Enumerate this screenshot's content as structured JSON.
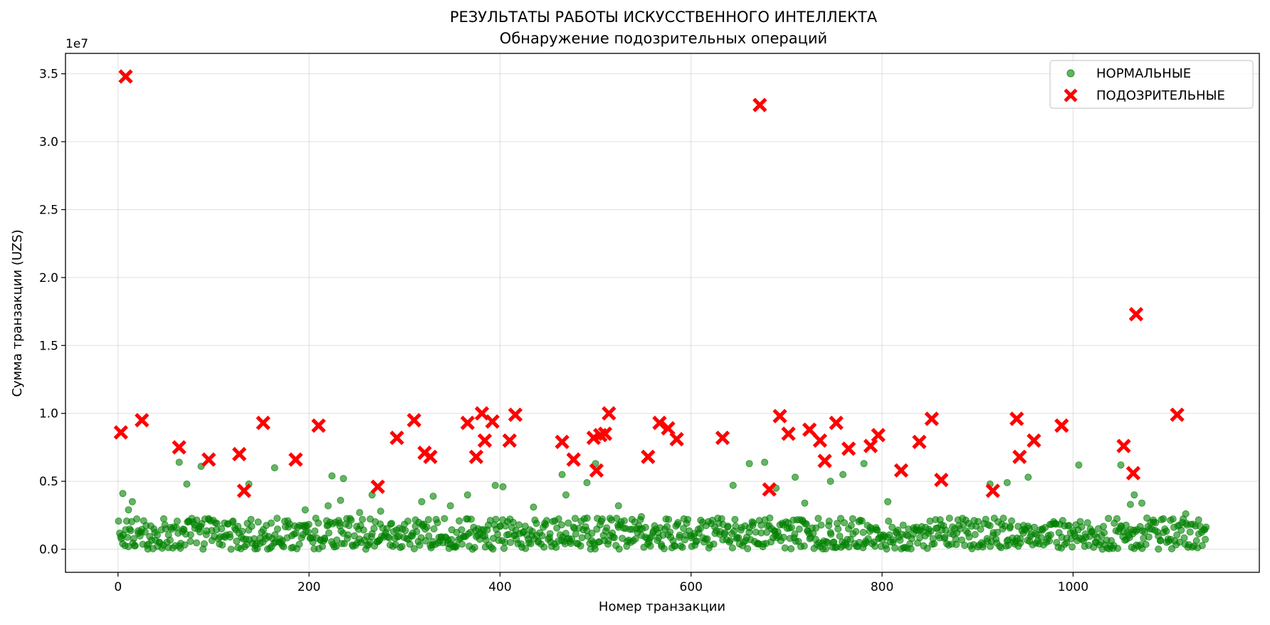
{
  "colors": {
    "normal": "#008000",
    "suspicious": "#ff0000",
    "grid": "#b0b0b0",
    "axes": "#000000"
  },
  "chart_data": {
    "type": "scatter",
    "title": "РЕЗУЛЬТАТЫ РАБОТЫ ИСКУССТВЕННОГО ИНТЕЛЛЕКТА",
    "subtitle": "Обнаружение подозрительных операций",
    "xlabel": "Номер транзакции",
    "ylabel": "Сумма транзакции (UZS)",
    "y_offset_label": "1e7",
    "xlim": [
      -55,
      1195
    ],
    "ylim": [
      -1700000,
      36500000
    ],
    "xticks": [
      0,
      200,
      400,
      600,
      800,
      1000
    ],
    "xtick_labels": [
      "0",
      "200",
      "400",
      "600",
      "800",
      "1000"
    ],
    "yticks": [
      0,
      5000000,
      10000000,
      15000000,
      20000000,
      25000000,
      30000000,
      35000000
    ],
    "ytick_labels": [
      "0.0",
      "0.5",
      "1.0",
      "1.5",
      "2.0",
      "2.5",
      "3.0",
      "3.5"
    ],
    "grid": true,
    "legend_position": "top-right",
    "legend": [
      "НОРМАЛЬНЫЕ",
      "ПОДОЗРИТЕЛЬНЫЕ"
    ],
    "series": [
      {
        "name": "НОРМАЛЬНЫЕ",
        "marker": "circle",
        "color": "#008000",
        "x_range": [
          0,
          1140
        ],
        "bulk_count": 1080,
        "bulk_y_range": [
          0,
          2300000
        ],
        "points": [
          [
            5,
            4100000
          ],
          [
            11,
            2900000
          ],
          [
            15,
            3500000
          ],
          [
            64,
            6400000
          ],
          [
            72,
            4800000
          ],
          [
            87,
            6100000
          ],
          [
            137,
            4800000
          ],
          [
            164,
            6000000
          ],
          [
            196,
            2900000
          ],
          [
            220,
            3200000
          ],
          [
            224,
            5400000
          ],
          [
            233,
            3600000
          ],
          [
            236,
            5200000
          ],
          [
            253,
            2700000
          ],
          [
            266,
            4000000
          ],
          [
            275,
            2800000
          ],
          [
            318,
            3500000
          ],
          [
            330,
            3900000
          ],
          [
            348,
            3200000
          ],
          [
            366,
            4000000
          ],
          [
            395,
            4700000
          ],
          [
            403,
            4600000
          ],
          [
            435,
            3100000
          ],
          [
            465,
            5500000
          ],
          [
            469,
            4000000
          ],
          [
            491,
            4900000
          ],
          [
            500,
            6300000
          ],
          [
            524,
            3200000
          ],
          [
            548,
            2400000
          ],
          [
            644,
            4700000
          ],
          [
            661,
            6300000
          ],
          [
            677,
            6400000
          ],
          [
            689,
            4500000
          ],
          [
            709,
            5300000
          ],
          [
            719,
            3400000
          ],
          [
            746,
            5000000
          ],
          [
            759,
            5500000
          ],
          [
            781,
            6300000
          ],
          [
            806,
            3500000
          ],
          [
            913,
            4800000
          ],
          [
            931,
            4900000
          ],
          [
            953,
            5300000
          ],
          [
            1006,
            6200000
          ],
          [
            1050,
            6200000
          ],
          [
            1060,
            3300000
          ],
          [
            1064,
            4000000
          ],
          [
            1072,
            3400000
          ],
          [
            1118,
            2600000
          ]
        ]
      },
      {
        "name": "ПОДОЗРИТЕЛЬНЫЕ",
        "marker": "X",
        "color": "#ff0000",
        "points": [
          [
            3,
            8600000
          ],
          [
            8,
            34800000
          ],
          [
            25,
            9500000
          ],
          [
            64,
            7500000
          ],
          [
            95,
            6600000
          ],
          [
            127,
            7000000
          ],
          [
            132,
            4300000
          ],
          [
            152,
            9300000
          ],
          [
            186,
            6600000
          ],
          [
            210,
            9100000
          ],
          [
            272,
            4600000
          ],
          [
            292,
            8200000
          ],
          [
            310,
            9500000
          ],
          [
            321,
            7100000
          ],
          [
            327,
            6800000
          ],
          [
            366,
            9300000
          ],
          [
            375,
            6800000
          ],
          [
            381,
            10000000
          ],
          [
            384,
            8000000
          ],
          [
            392,
            9400000
          ],
          [
            410,
            8000000
          ],
          [
            416,
            9900000
          ],
          [
            465,
            7900000
          ],
          [
            477,
            6600000
          ],
          [
            498,
            8200000
          ],
          [
            501,
            5800000
          ],
          [
            505,
            8400000
          ],
          [
            510,
            8500000
          ],
          [
            514,
            10000000
          ],
          [
            555,
            6800000
          ],
          [
            567,
            9300000
          ],
          [
            576,
            8900000
          ],
          [
            585,
            8100000
          ],
          [
            633,
            8200000
          ],
          [
            672,
            32700000
          ],
          [
            682,
            4400000
          ],
          [
            693,
            9800000
          ],
          [
            702,
            8500000
          ],
          [
            724,
            8800000
          ],
          [
            735,
            8000000
          ],
          [
            740,
            6500000
          ],
          [
            752,
            9300000
          ],
          [
            765,
            7400000
          ],
          [
            788,
            7600000
          ],
          [
            796,
            8400000
          ],
          [
            820,
            5800000
          ],
          [
            839,
            7900000
          ],
          [
            852,
            9600000
          ],
          [
            862,
            5100000
          ],
          [
            916,
            4300000
          ],
          [
            941,
            9600000
          ],
          [
            944,
            6800000
          ],
          [
            959,
            8000000
          ],
          [
            988,
            9100000
          ],
          [
            1053,
            7600000
          ],
          [
            1063,
            5600000
          ],
          [
            1066,
            17300000
          ],
          [
            1109,
            9900000
          ]
        ]
      }
    ]
  }
}
